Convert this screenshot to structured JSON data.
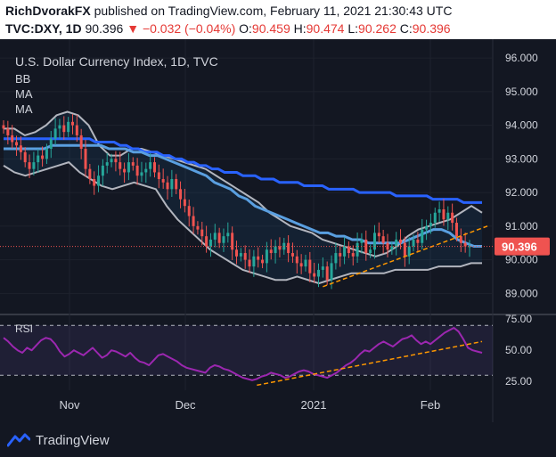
{
  "header": {
    "author": "RichDvorakFX",
    "published": " published on TradingView.com, February 11, 2021 21:30:43 UTC",
    "symbol": "TVC:DXY, 1D",
    "last": "90.396",
    "change": "−0.032 (−0.04%)",
    "o_label": "O:",
    "o_value": "90.459",
    "h_label": "H:",
    "h_value": "90.474",
    "l_label": "L:",
    "l_value": "90.262",
    "c_label": "C:",
    "c_value": "90.396"
  },
  "legend": {
    "title": "U.S. Dollar Currency Index, 1D, TVC",
    "bb": "BB",
    "ma1": "MA",
    "ma2": "MA",
    "rsi": "RSI"
  },
  "footer": {
    "brand": "TradingView"
  },
  "colors": {
    "bg": "#131722",
    "up": "#26a69a",
    "down": "#ef5350",
    "ma200": "#2962ff",
    "ma50": "#5a9fe0",
    "bb": "#b2b5be",
    "rsi": "#9c27b0",
    "trend": "#ff9800",
    "price_label": "#ef5350"
  },
  "chart_data": [
    {
      "type": "candlestick",
      "title": "U.S. Dollar Currency Index, 1D, TVC",
      "ylim": [
        88.4,
        96.4
      ],
      "y_ticks": [
        "96.000",
        "95.000",
        "94.000",
        "93.000",
        "92.000",
        "91.000",
        "90.000",
        "89.000"
      ],
      "x_ticks": [
        "Nov",
        "Dec",
        "2021",
        "Feb"
      ],
      "last_price_label": "90.396",
      "closes": [
        93.9,
        93.7,
        93.5,
        93.4,
        93.2,
        92.9,
        92.7,
        92.9,
        93.1,
        93.0,
        93.3,
        93.6,
        93.9,
        94.0,
        93.8,
        94.1,
        94.0,
        93.7,
        93.3,
        92.7,
        92.4,
        92.2,
        92.5,
        92.8,
        92.9,
        93.0,
        92.9,
        92.7,
        92.6,
        92.9,
        92.8,
        92.5,
        92.6,
        92.7,
        92.9,
        92.6,
        92.4,
        92.3,
        92.1,
        92.4,
        92.1,
        91.8,
        91.6,
        91.3,
        91.0,
        90.9,
        90.7,
        90.4,
        90.6,
        90.8,
        90.5,
        90.7,
        90.8,
        90.3,
        90.1,
        90.2,
        90.0,
        89.8,
        90.1,
        90.0,
        89.9,
        90.3,
        90.2,
        90.4,
        90.3,
        90.5,
        90.2,
        90.1,
        89.9,
        89.8,
        90.0,
        89.6,
        89.5,
        89.7,
        89.8,
        89.4,
        89.9,
        90.2,
        90.1,
        90.4,
        90.2,
        90.1,
        90.5,
        90.6,
        90.2,
        90.3,
        90.8,
        90.7,
        90.5,
        90.3,
        90.4,
        90.6,
        90.5,
        90.1,
        90.4,
        90.6,
        90.5,
        90.9,
        91.0,
        91.1,
        91.4,
        91.5,
        91.2,
        91.4,
        91.1,
        90.7,
        90.5,
        90.4,
        90.4
      ],
      "ma_slow": [
        93.6,
        93.6,
        93.6,
        93.6,
        93.6,
        93.6,
        93.6,
        93.6,
        93.6,
        93.6,
        93.6,
        93.6,
        93.6,
        93.6,
        93.6,
        93.5,
        93.5,
        93.5,
        93.5,
        93.4,
        93.4,
        93.3,
        93.3,
        93.2,
        93.2,
        93.2,
        93.1,
        93.1,
        93.0,
        93.0,
        92.9,
        92.9,
        92.8,
        92.8,
        92.7,
        92.7,
        92.6,
        92.6,
        92.6,
        92.5,
        92.5,
        92.5,
        92.4,
        92.4,
        92.4,
        92.3,
        92.3,
        92.3,
        92.3,
        92.2,
        92.2,
        92.2,
        92.2,
        92.1,
        92.1,
        92.1,
        92.1,
        92.1,
        92.0,
        92.0,
        92.0,
        92.0,
        92.0,
        92.0,
        91.9,
        91.9,
        91.9,
        91.9,
        91.9,
        91.9,
        91.8,
        91.8,
        91.8,
        91.8,
        91.8,
        91.7,
        91.7,
        91.7,
        91.7
      ],
      "ma_fast": [
        93.3,
        93.3,
        93.3,
        93.3,
        93.3,
        93.3,
        93.4,
        93.4,
        93.4,
        93.4,
        93.4,
        93.4,
        93.4,
        93.3,
        93.3,
        93.3,
        93.2,
        93.2,
        93.1,
        93.1,
        93.0,
        92.9,
        92.8,
        92.7,
        92.6,
        92.5,
        92.3,
        92.2,
        92.1,
        91.9,
        91.8,
        91.6,
        91.5,
        91.4,
        91.3,
        91.2,
        91.1,
        91.0,
        90.9,
        90.8,
        90.8,
        90.7,
        90.7,
        90.6,
        90.6,
        90.5,
        90.5,
        90.5,
        90.5,
        90.5,
        90.6,
        90.7,
        90.8,
        90.9,
        90.9,
        90.8,
        90.6,
        90.5,
        90.4,
        90.4
      ],
      "bb_upper": [
        93.9,
        93.9,
        93.7,
        93.8,
        94.0,
        94.3,
        94.4,
        94.3,
        94.0,
        93.4,
        93.1,
        93.1,
        93.3,
        93.3,
        93.2,
        93.1,
        93.0,
        92.9,
        92.8,
        92.7,
        92.5,
        92.3,
        92.1,
        91.9,
        91.7,
        91.4,
        91.2,
        91.0,
        90.9,
        90.8,
        90.6,
        90.5,
        90.4,
        90.3,
        90.2,
        90.1,
        90.2,
        90.4,
        90.7,
        90.9,
        91.0,
        91.1,
        91.2,
        91.4,
        91.6,
        91.4
      ],
      "bb_lower": [
        92.8,
        92.6,
        92.5,
        92.6,
        92.7,
        92.8,
        92.9,
        92.6,
        92.4,
        92.2,
        92.1,
        92.2,
        92.3,
        92.2,
        92.1,
        91.6,
        91.2,
        90.9,
        90.6,
        90.3,
        90.1,
        89.9,
        89.7,
        89.6,
        89.5,
        89.4,
        89.4,
        89.5,
        89.4,
        89.3,
        89.4,
        89.5,
        89.6,
        89.6,
        89.6,
        89.6,
        89.7,
        89.7,
        89.7,
        89.7,
        89.8,
        89.8,
        89.8,
        89.9,
        89.9
      ]
    },
    {
      "type": "line",
      "title": "RSI",
      "ylim": [
        18,
        78
      ],
      "y_ticks": [
        "75.00",
        "50.00",
        "25.00"
      ],
      "bands": [
        70,
        30
      ],
      "values": [
        60,
        57,
        53,
        50,
        48,
        52,
        50,
        54,
        58,
        60,
        59,
        55,
        49,
        45,
        47,
        50,
        48,
        46,
        49,
        52,
        48,
        44,
        46,
        50,
        49,
        47,
        45,
        48,
        44,
        41,
        40,
        38,
        42,
        46,
        47,
        45,
        43,
        41,
        38,
        36,
        35,
        34,
        33,
        32,
        36,
        38,
        37,
        35,
        34,
        32,
        30,
        28,
        27,
        26,
        27,
        29,
        30,
        32,
        31,
        30,
        28,
        29,
        31,
        33,
        34,
        33,
        31,
        30,
        29,
        28,
        30,
        32,
        35,
        38,
        40,
        43,
        47,
        50,
        49,
        52,
        55,
        57,
        55,
        53,
        56,
        59,
        60,
        62,
        58,
        55,
        57,
        55,
        58,
        61,
        64,
        66,
        68,
        65,
        59,
        52,
        50,
        49,
        48
      ]
    }
  ]
}
